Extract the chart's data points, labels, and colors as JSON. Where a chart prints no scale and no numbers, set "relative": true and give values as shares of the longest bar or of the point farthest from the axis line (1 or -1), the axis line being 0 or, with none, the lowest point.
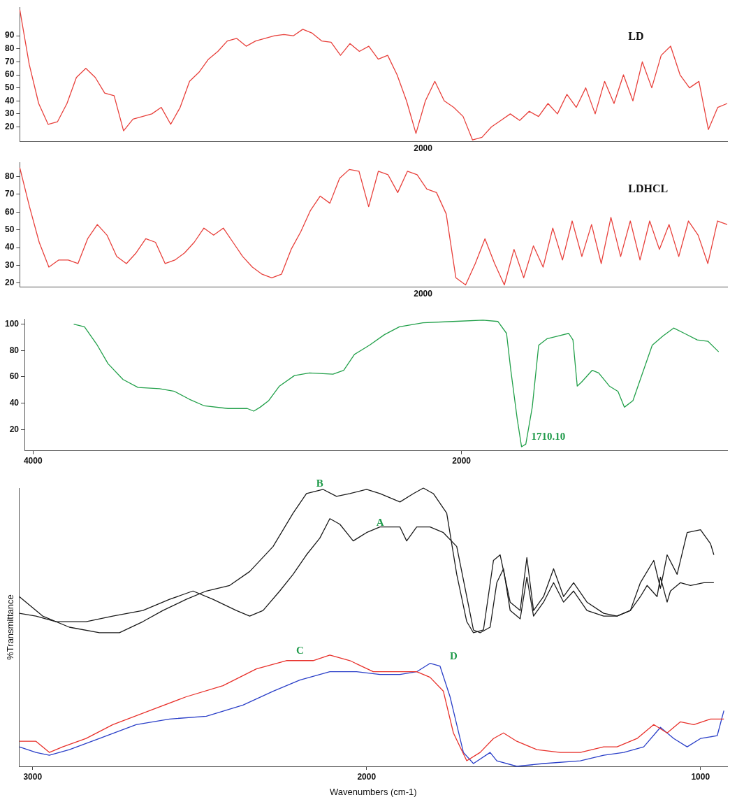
{
  "chart_data": [
    {
      "type": "line",
      "title": "LD",
      "annotations": [
        "2000"
      ],
      "categories": [
        null,
        null,
        null,
        null,
        null,
        null,
        null,
        null,
        null,
        null,
        null,
        null,
        null,
        null,
        null,
        null,
        null,
        null,
        null,
        null,
        null,
        null,
        null,
        null,
        null,
        null,
        null,
        null,
        null,
        null,
        null,
        null,
        null,
        null,
        null,
        null,
        null,
        null,
        null,
        null,
        null,
        null,
        null,
        null,
        null,
        null,
        null,
        null,
        null,
        null,
        null,
        null,
        null,
        null,
        null,
        null,
        null,
        null,
        null,
        null,
        null,
        null,
        null,
        null,
        null,
        null,
        null,
        null,
        null,
        null,
        null,
        null,
        null,
        null,
        null,
        null
      ],
      "ylim": [
        9,
        112
      ],
      "yticks": [
        20,
        30,
        40,
        50,
        60,
        70,
        80,
        90
      ],
      "grid": false,
      "series": [
        {
          "color": "#e8413c",
          "values": [
            110,
            68,
            38,
            22,
            24,
            38,
            58,
            65,
            58,
            46,
            44,
            17,
            26,
            28,
            30,
            35,
            22,
            35,
            55,
            62,
            72,
            78,
            86,
            88,
            82,
            86,
            88,
            90,
            91,
            90,
            95,
            92,
            86,
            85,
            75,
            84,
            78,
            82,
            72,
            75,
            60,
            40,
            15,
            40,
            55,
            40,
            35,
            28,
            10,
            12,
            20,
            25,
            30,
            25,
            32,
            28,
            38,
            30,
            45,
            35,
            50,
            30,
            55,
            38,
            60,
            40,
            70,
            50,
            75,
            82,
            60,
            50,
            55,
            18,
            35,
            38
          ]
        }
      ]
    },
    {
      "type": "line",
      "title": "LDHCL",
      "annotations": [
        "2000"
      ],
      "categories": [
        null,
        null,
        null,
        null,
        null,
        null,
        null,
        null,
        null,
        null,
        null,
        null,
        null,
        null,
        null,
        null,
        null,
        null,
        null,
        null,
        null,
        null,
        null,
        null,
        null,
        null,
        null,
        null,
        null,
        null,
        null,
        null,
        null,
        null,
        null,
        null,
        null,
        null,
        null,
        null,
        null,
        null,
        null,
        null,
        null,
        null,
        null,
        null,
        null,
        null,
        null,
        null,
        null,
        null,
        null,
        null,
        null,
        null,
        null,
        null,
        null,
        null,
        null,
        null,
        null,
        null,
        null,
        null,
        null,
        null,
        null,
        null,
        null,
        null
      ],
      "ylim": [
        18,
        88
      ],
      "yticks": [
        20,
        30,
        40,
        50,
        60,
        70,
        80
      ],
      "grid": false,
      "series": [
        {
          "color": "#e8413c",
          "values": [
            85,
            63,
            43,
            29,
            33,
            33,
            31,
            45,
            53,
            47,
            35,
            31,
            37,
            45,
            43,
            31,
            33,
            37,
            43,
            51,
            47,
            51,
            43,
            35,
            29,
            25,
            23,
            25,
            39,
            49,
            61,
            69,
            65,
            79,
            84,
            83,
            63,
            83,
            81,
            71,
            83,
            81,
            73,
            71,
            59,
            23,
            19,
            31,
            45,
            31,
            19,
            39,
            23,
            41,
            29,
            51,
            33,
            55,
            35,
            53,
            31,
            57,
            35,
            55,
            33,
            55,
            39,
            53,
            35,
            55,
            47,
            31,
            55,
            53
          ]
        }
      ]
    },
    {
      "type": "line",
      "xlim": [
        4040,
        760
      ],
      "xticks": [
        4000,
        2000
      ],
      "ylim": [
        4,
        104
      ],
      "yticks": [
        100,
        80,
        60,
        40,
        20
      ],
      "grid": false,
      "annotations": [
        {
          "text": "1710.10",
          "x": 1720,
          "y": 7
        }
      ],
      "series": [
        {
          "color": "#22a04a",
          "x": [
            3810,
            3760,
            3700,
            3650,
            3580,
            3510,
            3410,
            3340,
            3270,
            3200,
            3090,
            3000,
            2970,
            2940,
            2900,
            2850,
            2780,
            2710,
            2600,
            2550,
            2500,
            2430,
            2360,
            2290,
            2180,
            2040,
            1900,
            1830,
            1790,
            1770,
            1740,
            1720,
            1700,
            1670,
            1640,
            1600,
            1550,
            1500,
            1480,
            1460,
            1440,
            1390,
            1360,
            1310,
            1270,
            1240,
            1200,
            1170,
            1110,
            1060,
            1010,
            960,
            900,
            850,
            800
          ],
          "values": [
            100,
            98,
            84,
            70,
            58,
            52,
            51,
            49,
            43,
            38,
            36,
            36,
            34,
            37,
            42,
            53,
            61,
            63,
            62,
            65,
            77,
            84,
            92,
            98,
            101,
            102,
            103,
            102,
            93,
            65,
            28,
            7,
            9,
            37,
            84,
            89,
            91,
            93,
            88,
            53,
            56,
            65,
            63,
            53,
            49,
            37,
            42,
            56,
            84,
            91,
            97,
            93,
            88,
            87,
            79
          ]
        }
      ]
    },
    {
      "type": "line",
      "relative": true,
      "xlabel": "Wavenumbers (cm-1)",
      "ylabel": "%Transmittance",
      "xlim": [
        3040,
        920
      ],
      "xticks": [
        3000,
        2000,
        1000
      ],
      "grid": false,
      "annotations": [
        {
          "text": "A",
          "x": 2000,
          "y": 0.84
        },
        {
          "text": "B",
          "x": 2180,
          "y": 0.98
        },
        {
          "text": "C",
          "x": 2240,
          "y": 0.38
        },
        {
          "text": "D",
          "x": 1780,
          "y": 0.36
        }
      ],
      "series": [
        {
          "color": "#1a1a1a",
          "x": [
            3040,
            2990,
            2930,
            2840,
            2760,
            2670,
            2590,
            2520,
            2460,
            2390,
            2350,
            2310,
            2260,
            2220,
            2180,
            2140,
            2110,
            2080,
            2040,
            2000,
            1960,
            1900,
            1880,
            1850,
            1810,
            1770,
            1730,
            1700,
            1680,
            1660,
            1630,
            1610,
            1590,
            1570,
            1540,
            1520,
            1500,
            1470,
            1440,
            1410,
            1380,
            1340,
            1290,
            1250,
            1210,
            1180,
            1160,
            1130,
            1120,
            1100,
            1090,
            1060,
            1030,
            990,
            960
          ],
          "values": [
            0.55,
            0.54,
            0.52,
            0.52,
            0.54,
            0.56,
            0.6,
            0.63,
            0.6,
            0.56,
            0.54,
            0.56,
            0.63,
            0.69,
            0.76,
            0.82,
            0.89,
            0.87,
            0.81,
            0.84,
            0.86,
            0.86,
            0.81,
            0.86,
            0.86,
            0.84,
            0.79,
            0.61,
            0.49,
            0.48,
            0.5,
            0.66,
            0.71,
            0.56,
            0.53,
            0.68,
            0.54,
            0.59,
            0.66,
            0.59,
            0.63,
            0.56,
            0.54,
            0.54,
            0.56,
            0.61,
            0.65,
            0.61,
            0.68,
            0.59,
            0.63,
            0.66,
            0.65,
            0.66,
            0.66
          ]
        },
        {
          "color": "#1a1a1a",
          "x": [
            3040,
            2970,
            2890,
            2800,
            2740,
            2670,
            2610,
            2540,
            2480,
            2410,
            2350,
            2280,
            2220,
            2180,
            2130,
            2090,
            2050,
            2000,
            1960,
            1900,
            1860,
            1830,
            1800,
            1760,
            1730,
            1700,
            1680,
            1650,
            1620,
            1600,
            1570,
            1540,
            1520,
            1500,
            1470,
            1440,
            1410,
            1380,
            1340,
            1290,
            1250,
            1210,
            1180,
            1140,
            1120,
            1100,
            1070,
            1040,
            1000,
            970,
            960
          ],
          "values": [
            0.61,
            0.54,
            0.5,
            0.48,
            0.48,
            0.52,
            0.56,
            0.6,
            0.63,
            0.65,
            0.7,
            0.79,
            0.91,
            0.98,
            0.995,
            0.97,
            0.98,
            0.995,
            0.98,
            0.95,
            0.98,
            1,
            0.98,
            0.91,
            0.69,
            0.52,
            0.48,
            0.49,
            0.74,
            0.76,
            0.59,
            0.56,
            0.75,
            0.56,
            0.61,
            0.71,
            0.61,
            0.66,
            0.59,
            0.55,
            0.54,
            0.56,
            0.66,
            0.74,
            0.64,
            0.76,
            0.69,
            0.84,
            0.85,
            0.8,
            0.76
          ]
        },
        {
          "color": "#e8302a",
          "x": [
            3040,
            2990,
            2950,
            2910,
            2840,
            2760,
            2650,
            2540,
            2430,
            2330,
            2240,
            2160,
            2110,
            2050,
            1980,
            1900,
            1850,
            1810,
            1770,
            1740,
            1700,
            1660,
            1620,
            1590,
            1550,
            1490,
            1420,
            1360,
            1290,
            1250,
            1190,
            1140,
            1100,
            1060,
            1020,
            970,
            930
          ],
          "values": [
            0.09,
            0.09,
            0.05,
            0.07,
            0.1,
            0.15,
            0.2,
            0.25,
            0.29,
            0.35,
            0.38,
            0.38,
            0.4,
            0.38,
            0.34,
            0.34,
            0.34,
            0.32,
            0.27,
            0.12,
            0.02,
            0.05,
            0.1,
            0.12,
            0.09,
            0.06,
            0.05,
            0.05,
            0.07,
            0.07,
            0.1,
            0.15,
            0.12,
            0.16,
            0.15,
            0.17,
            0.17
          ]
        },
        {
          "color": "#2a3fc8",
          "x": [
            3040,
            2990,
            2950,
            2890,
            2800,
            2690,
            2590,
            2480,
            2370,
            2280,
            2200,
            2110,
            2030,
            1960,
            1900,
            1850,
            1810,
            1780,
            1750,
            1710,
            1680,
            1630,
            1610,
            1550,
            1470,
            1360,
            1290,
            1230,
            1170,
            1120,
            1080,
            1040,
            1000,
            950,
            930
          ],
          "values": [
            0.07,
            0.05,
            0.04,
            0.06,
            0.1,
            0.15,
            0.17,
            0.18,
            0.22,
            0.27,
            0.31,
            0.34,
            0.34,
            0.33,
            0.33,
            0.34,
            0.37,
            0.36,
            0.25,
            0.05,
            0.01,
            0.05,
            0.02,
            0,
            0.01,
            0.02,
            0.04,
            0.05,
            0.07,
            0.14,
            0.1,
            0.07,
            0.1,
            0.11,
            0.2
          ]
        }
      ]
    }
  ]
}
